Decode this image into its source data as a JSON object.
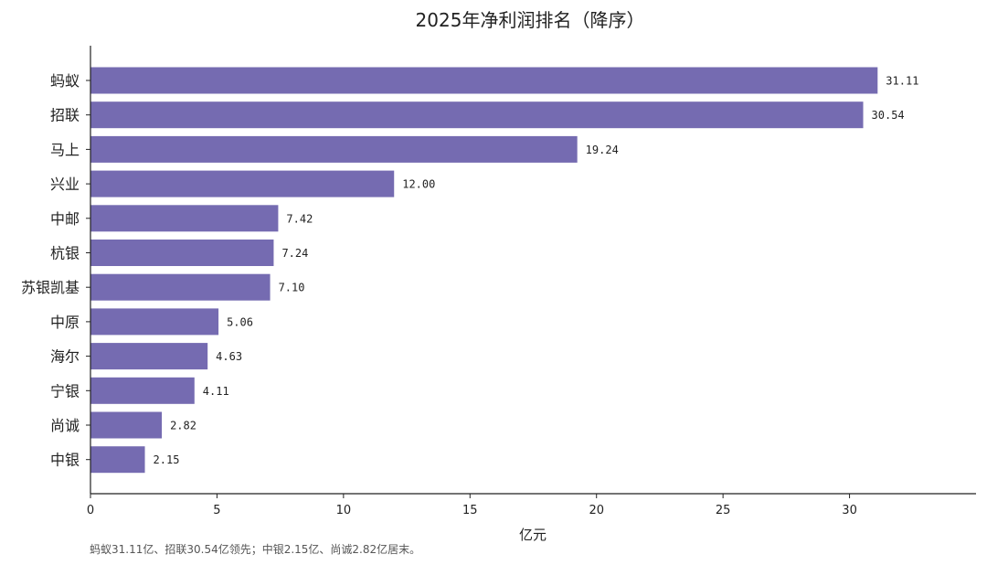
{
  "chart_data": {
    "type": "bar",
    "orientation": "horizontal",
    "title": "2025年净利润排名（降序）",
    "xlabel": "亿元",
    "ylabel": "",
    "categories": [
      "蚂蚁",
      "招联",
      "马上",
      "兴业",
      "中邮",
      "杭银",
      "苏银凯基",
      "中原",
      "海尔",
      "宁银",
      "尚诚",
      "中银"
    ],
    "values": [
      31.11,
      30.54,
      19.24,
      12.0,
      7.42,
      7.24,
      7.1,
      5.06,
      4.63,
      4.11,
      2.82,
      2.15
    ],
    "value_labels": [
      "31.11",
      "30.54",
      "19.24",
      "12.00",
      "7.42",
      "7.24",
      "7.10",
      "5.06",
      "4.63",
      "4.11",
      "2.82",
      "2.15"
    ],
    "xlim": [
      0,
      35
    ],
    "xticks": [
      0,
      5,
      10,
      15,
      20,
      25,
      30
    ],
    "grid": false,
    "legend": "none",
    "bar_color": "#756bb1",
    "footnote": "蚂蚁31.11亿、招联30.54亿领先；中银2.15亿、尚诚2.82亿居末。"
  }
}
